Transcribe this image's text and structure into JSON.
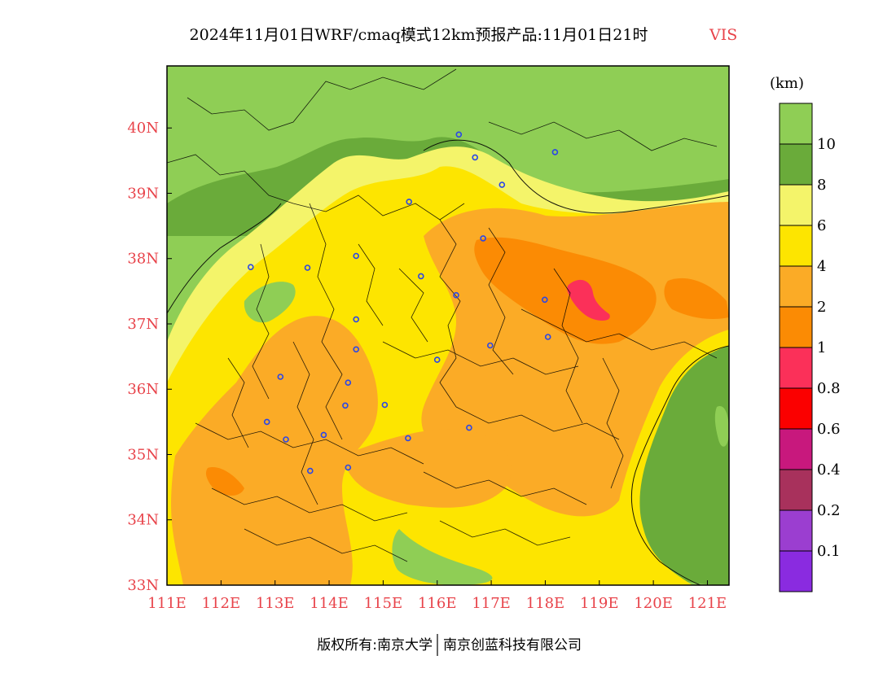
{
  "title": {
    "main": "2024年11月01日WRF/cmaq模式12km预报产品:11月01日21时",
    "variable": "VIS"
  },
  "colors": {
    "axis_label": "#e8434a",
    "bands": {
      "gt10": "#8fce55",
      "8to10": "#6aab3a",
      "6to8": "#f4f46a",
      "4to6": "#fde500",
      "2to4": "#fbab26",
      "1to2": "#fb8b04",
      "0.8to1": "#fb3059",
      "0.6to0.8": "#fb0000",
      "0.4to0.6": "#c8187d",
      "0.2to0.4": "#a8315c",
      "0.1to0.2": "#9b3ed0",
      "lt0.1": "#8a2be0"
    }
  },
  "map": {
    "lon_labels": [
      "111E",
      "112E",
      "113E",
      "114E",
      "115E",
      "116E",
      "117E",
      "118E",
      "119E",
      "120E",
      "121E"
    ],
    "lat_labels": [
      "33N",
      "34N",
      "35N",
      "36N",
      "37N",
      "38N",
      "39N",
      "40N"
    ],
    "lon_range": [
      111,
      121.4
    ],
    "lat_range": [
      33,
      40.95
    ],
    "city_markers": [
      [
        116.4,
        39.9
      ],
      [
        116.7,
        39.55
      ],
      [
        117.2,
        39.13
      ],
      [
        118.18,
        39.63
      ],
      [
        115.48,
        38.87
      ],
      [
        114.5,
        38.04
      ],
      [
        113.6,
        37.86
      ],
      [
        112.55,
        37.87
      ],
      [
        115.7,
        37.73
      ],
      [
        116.35,
        37.44
      ],
      [
        114.5,
        37.07
      ],
      [
        114.5,
        36.61
      ],
      [
        116.0,
        36.45
      ],
      [
        116.98,
        36.67
      ],
      [
        117.99,
        37.37
      ],
      [
        118.05,
        36.8
      ],
      [
        113.1,
        36.19
      ],
      [
        114.35,
        36.1
      ],
      [
        114.3,
        35.75
      ],
      [
        115.03,
        35.76
      ],
      [
        116.59,
        35.41
      ],
      [
        112.85,
        35.5
      ],
      [
        113.2,
        35.23
      ],
      [
        113.9,
        35.3
      ],
      [
        115.46,
        35.25
      ],
      [
        114.35,
        34.8
      ],
      [
        113.65,
        34.75
      ],
      [
        116.85,
        38.31
      ]
    ]
  },
  "legend": {
    "unit": "(km)",
    "ticks": [
      "10",
      "8",
      "6",
      "4",
      "2",
      "1",
      "0.8",
      "0.6",
      "0.4",
      "0.2",
      "0.1"
    ],
    "swatches": [
      "gt10",
      "8to10",
      "6to8",
      "4to6",
      "2to4",
      "1to2",
      "0.8to1",
      "0.6to0.8",
      "0.4to0.6",
      "0.2to0.4",
      "0.1to0.2",
      "lt0.1"
    ]
  },
  "footer": {
    "left": "版权所有:南京大学",
    "right": "南京创蓝科技有限公司"
  }
}
